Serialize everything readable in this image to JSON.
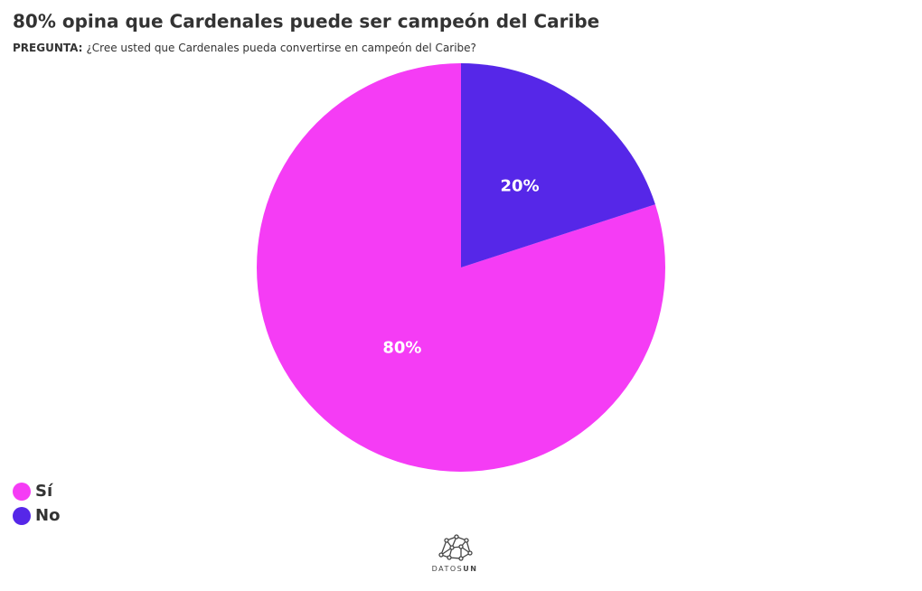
{
  "chart_data": {
    "type": "pie",
    "title": "80% opina que Cardenales puede ser campeón del Caribe",
    "subtitle_label": "PREGUNTA:",
    "subtitle": "¿Cree usted que Cardenales pueda convertirse en campeón del Caribe?",
    "categories": [
      "Sí",
      "No"
    ],
    "values": [
      80,
      20
    ],
    "value_labels": [
      "80%",
      "20%"
    ],
    "colors": [
      "#f53cf5",
      "#5627e8"
    ],
    "direction": "counterclockwise",
    "legend": "bottom-left"
  },
  "footer": {
    "logo": [
      "DATOS",
      "UN"
    ]
  }
}
